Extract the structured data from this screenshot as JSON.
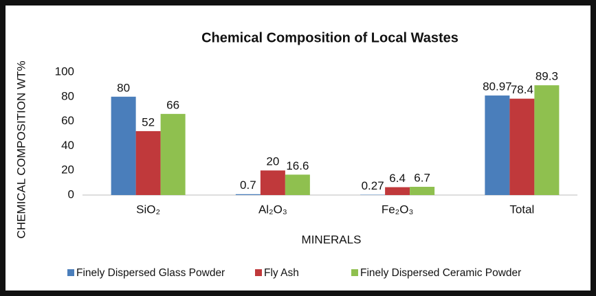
{
  "chart_data": {
    "type": "bar",
    "title": "Chemical Composition of Local Wastes",
    "y_label": "CHEMICAL COMPOSITION WT%",
    "x_label": "MINERALS",
    "categories": [
      "SiO₂",
      "Al₂O₃",
      "Fe₂O₃",
      "Total"
    ],
    "series": [
      {
        "name": "Finely Dispersed Glass Powder",
        "color": "#4a7ebb",
        "values": [
          80,
          0.7,
          0.27,
          80.97
        ]
      },
      {
        "name": "Fly Ash",
        "color": "#c0393b",
        "values": [
          52,
          20,
          6.4,
          78.4
        ]
      },
      {
        "name": "Finely Dispersed Ceramic Powder",
        "color": "#8fc04f",
        "values": [
          66,
          16.6,
          6.7,
          89.3
        ]
      }
    ],
    "ylim": [
      0,
      100
    ],
    "yticks": [
      0,
      20,
      40,
      60,
      80,
      100
    ],
    "grid": false,
    "legend": "bottom"
  }
}
